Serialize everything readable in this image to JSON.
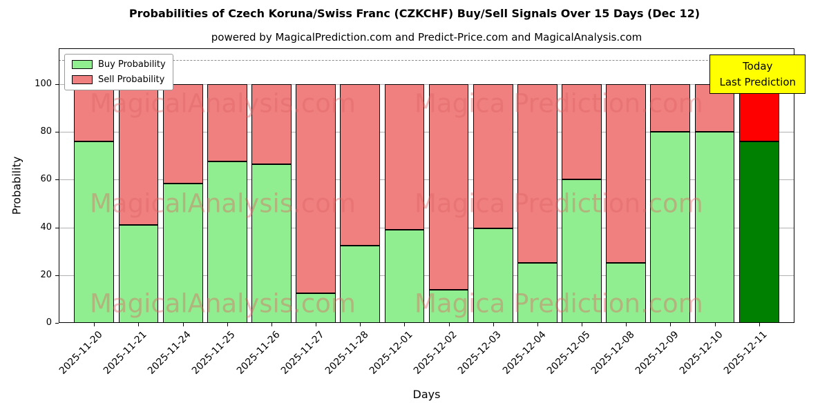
{
  "title": "Probabilities of Czech Koruna/Swiss Franc (CZKCHF) Buy/Sell Signals Over 15 Days (Dec 12)",
  "subtitle": "powered by MagicalPrediction.com and Predict-Price.com and MagicalAnalysis.com",
  "chart_data": {
    "type": "bar",
    "stacked": true,
    "xlabel": "Days",
    "ylabel": "Probability",
    "ylim": [
      0,
      115
    ],
    "yticks": [
      0,
      20,
      40,
      60,
      80,
      100
    ],
    "grid": true,
    "dashed_line_y": 110,
    "categories": [
      "2025-11-20",
      "2025-11-21",
      "2025-11-24",
      "2025-11-25",
      "2025-11-26",
      "2025-11-27",
      "2025-11-28",
      "2025-12-01",
      "2025-12-02",
      "2025-12-03",
      "2025-12-04",
      "2025-12-05",
      "2025-12-08",
      "2025-12-09",
      "2025-12-10",
      "2025-12-11"
    ],
    "series": [
      {
        "name": "Buy Probability",
        "values": [
          76,
          41,
          58.5,
          67.5,
          66.5,
          12.5,
          32.5,
          39,
          14,
          39.5,
          25,
          60,
          25,
          80,
          80,
          76
        ]
      },
      {
        "name": "Sell Probability",
        "values": [
          24,
          59,
          41.5,
          32.5,
          33.5,
          87.5,
          67.5,
          61,
          86,
          60.5,
          75,
          40,
          75,
          20,
          20,
          24
        ]
      }
    ],
    "today_index": 15,
    "colors": {
      "buy": "#90EE90",
      "sell": "#F08080",
      "today_buy": "#008000",
      "today_sell": "#FF0000",
      "bar_edge": "#000000",
      "grid": "#b0b0b0",
      "annotation_bg": "#FFFF00"
    },
    "legend_position": "upper-left",
    "annotation": {
      "line1": "Today",
      "line2": "Last Prediction"
    },
    "watermark": {
      "texts": [
        "MagicalAnalysis.com",
        "Magica Prediction.com"
      ],
      "color": "rgba(225,100,100,0.42)",
      "rows": 3
    }
  }
}
